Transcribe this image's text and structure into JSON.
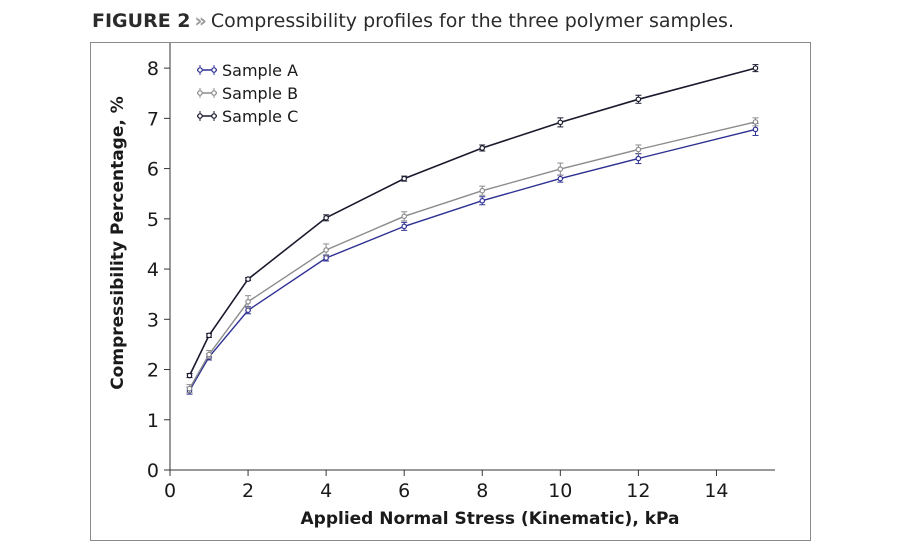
{
  "figure": {
    "label": "FIGURE 2",
    "separator": "»",
    "caption": "Compressibility profiles for the three polymer samples."
  },
  "chart_data": {
    "type": "line",
    "title": "",
    "xlabel": "Applied Normal Stress (Kinematic), kPa",
    "ylabel": "Compressibility Percentage, %",
    "xlim": [
      0,
      15.5
    ],
    "ylim": [
      0,
      8.5
    ],
    "xticks": [
      0,
      2,
      4,
      6,
      8,
      10,
      12,
      14
    ],
    "yticks": [
      0,
      1,
      2,
      3,
      4,
      5,
      6,
      7,
      8
    ],
    "grid": false,
    "legend_position": "top-left",
    "x": [
      0.5,
      1,
      2,
      4,
      6,
      8,
      10,
      12,
      15
    ],
    "series": [
      {
        "name": "Sample A",
        "color": "#2e3192",
        "values": [
          1.58,
          2.25,
          3.18,
          4.22,
          4.85,
          5.36,
          5.8,
          6.2,
          6.78
        ],
        "errors": [
          0.07,
          0.06,
          0.07,
          0.06,
          0.08,
          0.08,
          0.07,
          0.1,
          0.12
        ]
      },
      {
        "name": "Sample B",
        "color": "#8c8c8c",
        "values": [
          1.62,
          2.3,
          3.35,
          4.38,
          5.05,
          5.56,
          5.99,
          6.38,
          6.93
        ],
        "errors": [
          0.08,
          0.08,
          0.12,
          0.12,
          0.09,
          0.09,
          0.12,
          0.09,
          0.08
        ]
      },
      {
        "name": "Sample C",
        "color": "#1a1a2e",
        "values": [
          1.88,
          2.68,
          3.8,
          5.02,
          5.8,
          6.41,
          6.92,
          7.38,
          8.0
        ],
        "errors": [
          0.04,
          0.04,
          0.03,
          0.06,
          0.05,
          0.06,
          0.09,
          0.08,
          0.07
        ]
      }
    ]
  }
}
